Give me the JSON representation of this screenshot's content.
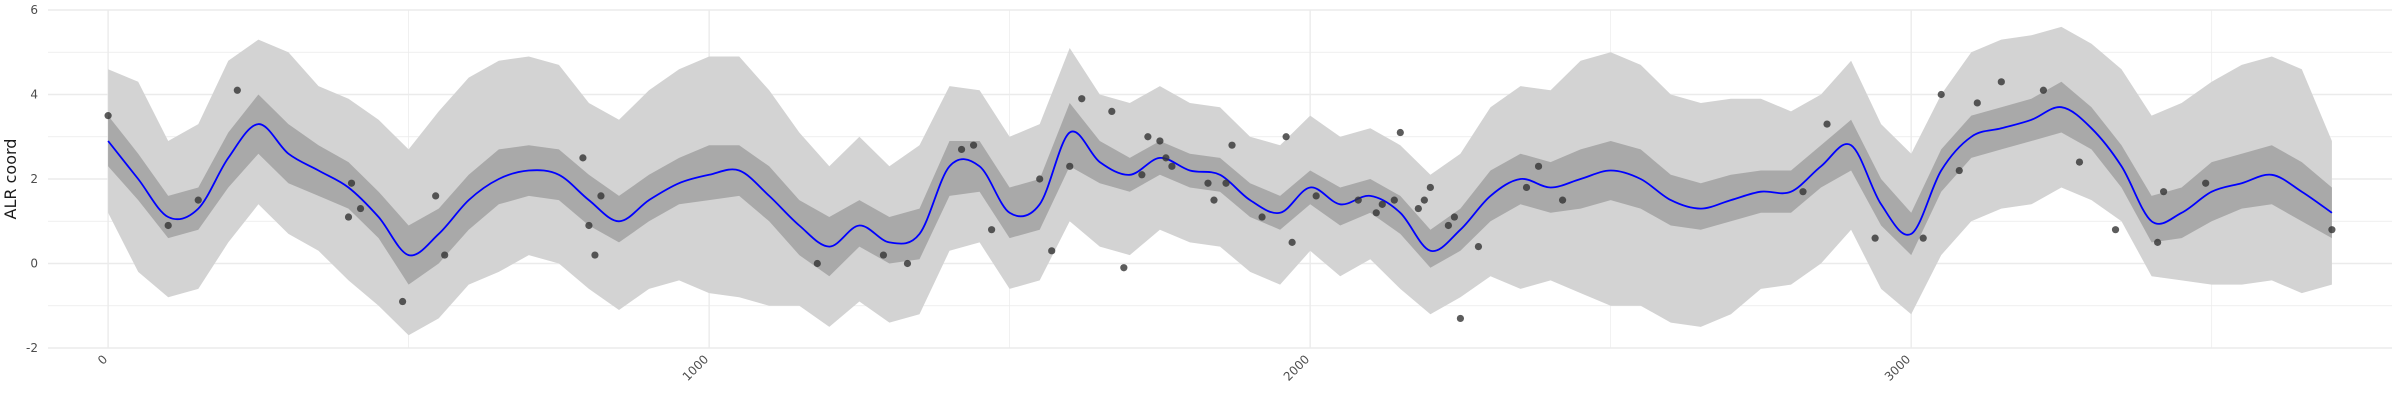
{
  "chart_data": {
    "type": "line",
    "title": "",
    "xlabel": "",
    "ylabel": "ALR coord",
    "xlim": [
      -100,
      3800
    ],
    "ylim": [
      -2,
      6
    ],
    "x_ticks": [
      0,
      1000,
      2000,
      3000
    ],
    "x_minor_ticks": [
      500,
      1500,
      2500,
      3500
    ],
    "y_ticks": [
      -2,
      0,
      2,
      4,
      6
    ],
    "y_minor_ticks": [
      -1,
      1,
      3,
      5
    ],
    "grid": true,
    "legend": "none",
    "colors": {
      "mean_line": "#0000ff",
      "inner_band": "#a9a9a9",
      "outer_band": "#d3d3d3",
      "points": "#333333",
      "grid": "#ebebeb"
    },
    "mean": {
      "x": [
        0,
        50,
        100,
        150,
        200,
        250,
        300,
        350,
        400,
        450,
        500,
        550,
        600,
        650,
        700,
        750,
        800,
        850,
        900,
        950,
        1000,
        1050,
        1100,
        1150,
        1200,
        1250,
        1300,
        1350,
        1400,
        1450,
        1500,
        1550,
        1600,
        1650,
        1700,
        1750,
        1800,
        1850,
        1900,
        1950,
        2000,
        2050,
        2100,
        2150,
        2200,
        2250,
        2300,
        2350,
        2400,
        2450,
        2500,
        2550,
        2600,
        2650,
        2700,
        2750,
        2800,
        2850,
        2900,
        2950,
        3000,
        3050,
        3100,
        3150,
        3200,
        3250,
        3300,
        3350,
        3400,
        3450,
        3500,
        3550,
        3600,
        3650,
        3700
      ],
      "y": [
        2.9,
        2.0,
        1.1,
        1.3,
        2.5,
        3.3,
        2.6,
        2.2,
        1.8,
        1.1,
        0.2,
        0.7,
        1.5,
        2.0,
        2.2,
        2.1,
        1.5,
        1.0,
        1.5,
        1.9,
        2.1,
        2.2,
        1.6,
        0.9,
        0.4,
        0.9,
        0.5,
        0.7,
        2.3,
        2.3,
        1.2,
        1.4,
        3.1,
        2.4,
        2.1,
        2.5,
        2.2,
        2.1,
        1.5,
        1.2,
        1.8,
        1.4,
        1.6,
        1.2,
        0.3,
        0.8,
        1.6,
        2.0,
        1.8,
        2.0,
        2.2,
        2.0,
        1.5,
        1.3,
        1.5,
        1.7,
        1.7,
        2.3,
        2.8,
        1.4,
        0.7,
        2.2,
        3.0,
        3.2,
        3.4,
        3.7,
        3.2,
        2.3,
        1.0,
        1.2,
        1.7,
        1.9,
        2.1,
        1.7,
        1.2
      ]
    },
    "inner_band": {
      "x": [
        0,
        50,
        100,
        150,
        200,
        250,
        300,
        350,
        400,
        450,
        500,
        550,
        600,
        650,
        700,
        750,
        800,
        850,
        900,
        950,
        1000,
        1050,
        1100,
        1150,
        1200,
        1250,
        1300,
        1350,
        1400,
        1450,
        1500,
        1550,
        1600,
        1650,
        1700,
        1750,
        1800,
        1850,
        1900,
        1950,
        2000,
        2050,
        2100,
        2150,
        2200,
        2250,
        2300,
        2350,
        2400,
        2450,
        2500,
        2550,
        2600,
        2650,
        2700,
        2750,
        2800,
        2850,
        2900,
        2950,
        3000,
        3050,
        3100,
        3150,
        3200,
        3250,
        3300,
        3350,
        3400,
        3450,
        3500,
        3550,
        3600,
        3650,
        3700
      ],
      "lower": [
        2.3,
        1.5,
        0.6,
        0.8,
        1.8,
        2.6,
        1.9,
        1.6,
        1.3,
        0.6,
        -0.5,
        0.0,
        0.8,
        1.4,
        1.6,
        1.5,
        0.9,
        0.5,
        1.0,
        1.4,
        1.5,
        1.6,
        1.0,
        0.2,
        -0.3,
        0.4,
        0.0,
        0.1,
        1.6,
        1.7,
        0.6,
        0.8,
        2.3,
        1.9,
        1.7,
        2.1,
        1.8,
        1.7,
        1.1,
        0.8,
        1.4,
        0.9,
        1.2,
        0.7,
        -0.1,
        0.3,
        1.0,
        1.4,
        1.2,
        1.3,
        1.5,
        1.3,
        0.9,
        0.8,
        1.0,
        1.2,
        1.2,
        1.8,
        2.2,
        0.9,
        0.2,
        1.7,
        2.5,
        2.7,
        2.9,
        3.1,
        2.7,
        1.8,
        0.5,
        0.6,
        1.0,
        1.3,
        1.4,
        1.0,
        0.6
      ],
      "upper": [
        3.5,
        2.6,
        1.6,
        1.8,
        3.1,
        4.0,
        3.3,
        2.8,
        2.4,
        1.7,
        0.9,
        1.3,
        2.1,
        2.7,
        2.8,
        2.7,
        2.1,
        1.6,
        2.1,
        2.5,
        2.8,
        2.8,
        2.3,
        1.5,
        1.1,
        1.5,
        1.1,
        1.3,
        2.9,
        2.9,
        1.8,
        2.0,
        3.8,
        2.9,
        2.5,
        2.9,
        2.6,
        2.5,
        1.9,
        1.6,
        2.2,
        1.8,
        2.0,
        1.6,
        0.8,
        1.3,
        2.2,
        2.6,
        2.4,
        2.7,
        2.9,
        2.7,
        2.1,
        1.9,
        2.1,
        2.2,
        2.2,
        2.8,
        3.4,
        2.0,
        1.2,
        2.7,
        3.5,
        3.7,
        3.9,
        4.3,
        3.7,
        2.8,
        1.6,
        1.8,
        2.4,
        2.6,
        2.8,
        2.4,
        1.8
      ]
    },
    "outer_band": {
      "x": [
        0,
        50,
        100,
        150,
        200,
        250,
        300,
        350,
        400,
        450,
        500,
        550,
        600,
        650,
        700,
        750,
        800,
        850,
        900,
        950,
        1000,
        1050,
        1100,
        1150,
        1200,
        1250,
        1300,
        1350,
        1400,
        1450,
        1500,
        1550,
        1600,
        1650,
        1700,
        1750,
        1800,
        1850,
        1900,
        1950,
        2000,
        2050,
        2100,
        2150,
        2200,
        2250,
        2300,
        2350,
        2400,
        2450,
        2500,
        2550,
        2600,
        2650,
        2700,
        2750,
        2800,
        2850,
        2900,
        2950,
        3000,
        3050,
        3100,
        3150,
        3200,
        3250,
        3300,
        3350,
        3400,
        3450,
        3500,
        3550,
        3600,
        3650,
        3700
      ],
      "lower": [
        1.2,
        -0.2,
        -0.8,
        -0.6,
        0.5,
        1.4,
        0.7,
        0.3,
        -0.4,
        -1.0,
        -1.7,
        -1.3,
        -0.5,
        -0.2,
        0.2,
        0.0,
        -0.6,
        -1.1,
        -0.6,
        -0.4,
        -0.7,
        -0.8,
        -1.0,
        -1.0,
        -1.5,
        -0.9,
        -1.4,
        -1.2,
        0.3,
        0.5,
        -0.6,
        -0.4,
        1.0,
        0.4,
        0.2,
        0.8,
        0.5,
        0.4,
        -0.2,
        -0.5,
        0.3,
        -0.3,
        0.1,
        -0.6,
        -1.2,
        -0.8,
        -0.3,
        -0.6,
        -0.4,
        -0.7,
        -1.0,
        -1.0,
        -1.4,
        -1.5,
        -1.2,
        -0.6,
        -0.5,
        0.0,
        0.8,
        -0.6,
        -1.2,
        0.2,
        1.0,
        1.3,
        1.4,
        1.8,
        1.5,
        1.0,
        -0.3,
        -0.4,
        -0.5,
        -0.5,
        -0.4,
        -0.7,
        -0.5
      ],
      "upper": [
        4.6,
        4.3,
        2.9,
        3.3,
        4.8,
        5.3,
        5.0,
        4.2,
        3.9,
        3.4,
        2.7,
        3.6,
        4.4,
        4.8,
        4.9,
        4.7,
        3.8,
        3.4,
        4.1,
        4.6,
        4.9,
        4.9,
        4.1,
        3.1,
        2.3,
        3.0,
        2.3,
        2.8,
        4.2,
        4.1,
        3.0,
        3.3,
        5.1,
        4.0,
        3.8,
        4.2,
        3.8,
        3.7,
        3.0,
        2.8,
        3.5,
        3.0,
        3.2,
        2.8,
        2.1,
        2.6,
        3.7,
        4.2,
        4.1,
        4.8,
        5.0,
        4.7,
        4.0,
        3.8,
        3.9,
        3.9,
        3.6,
        4.0,
        4.8,
        3.3,
        2.6,
        4.0,
        5.0,
        5.3,
        5.4,
        5.6,
        5.2,
        4.6,
        3.5,
        3.8,
        4.3,
        4.7,
        4.9,
        4.6,
        2.9
      ]
    },
    "points": {
      "x": [
        0,
        100,
        150,
        215,
        405,
        420,
        400,
        490,
        545,
        560,
        790,
        800,
        820,
        810,
        1180,
        1290,
        1330,
        1420,
        1440,
        1470,
        1550,
        1570,
        1600,
        1620,
        1670,
        1690,
        1720,
        1730,
        1750,
        1760,
        1770,
        1830,
        1840,
        1860,
        1870,
        1920,
        1960,
        1970,
        2010,
        2080,
        2110,
        2120,
        2140,
        2150,
        2180,
        2190,
        2200,
        2230,
        2240,
        2250,
        2280,
        2360,
        2380,
        2420,
        2820,
        2860,
        2940,
        3020,
        3050,
        3080,
        3110,
        3150,
        3220,
        3280,
        3340,
        3410,
        3420,
        3490,
        3700
      ],
      "y": [
        3.5,
        0.9,
        1.5,
        4.1,
        1.9,
        1.3,
        1.1,
        -0.9,
        1.6,
        0.2,
        2.5,
        0.9,
        1.6,
        0.2,
        0.0,
        0.2,
        0.0,
        2.7,
        2.8,
        0.8,
        2.0,
        0.3,
        2.3,
        3.9,
        3.6,
        -0.1,
        2.1,
        3.0,
        2.9,
        2.5,
        2.3,
        1.9,
        1.5,
        1.9,
        2.8,
        1.1,
        3.0,
        0.5,
        1.6,
        1.5,
        1.2,
        1.4,
        1.5,
        3.1,
        1.3,
        1.5,
        1.8,
        0.9,
        1.1,
        -1.3,
        0.4,
        1.8,
        2.3,
        1.5,
        1.7,
        3.3,
        0.6,
        0.6,
        4.0,
        2.2,
        3.8,
        4.3,
        4.1,
        2.4,
        0.8,
        0.5,
        1.7,
        1.9,
        0.8
      ]
    }
  }
}
